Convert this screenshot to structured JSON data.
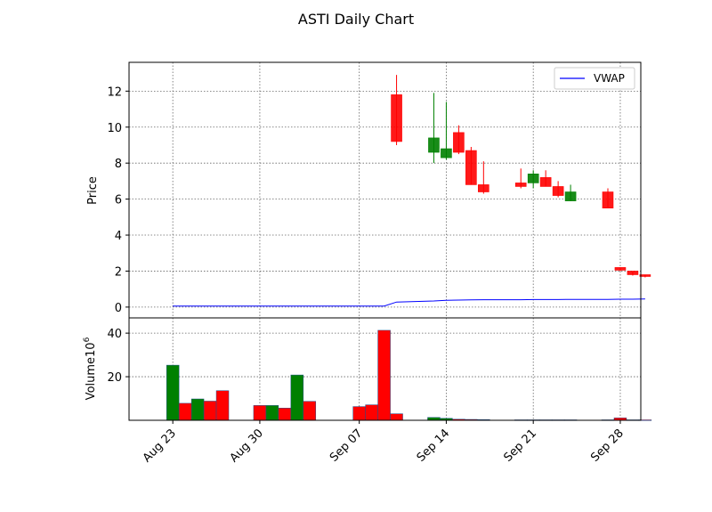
{
  "chart_data": {
    "type": "candlestick",
    "title": "ASTI Daily Chart",
    "price_panel": {
      "ylabel": "Price",
      "ylim": [
        -0.6,
        13.6
      ],
      "yticks": [
        0,
        2,
        4,
        6,
        8,
        10,
        12
      ],
      "grid": true,
      "legend": {
        "placement": "top-right",
        "entries": [
          "VWAP"
        ]
      },
      "vwap_color": "#0000ff"
    },
    "volume_panel": {
      "ylabel": "Volume",
      "ylabel_exponent": "10",
      "ylabel_exponent_power": "6",
      "ylim": [
        0,
        47
      ],
      "yticks": [
        20,
        40
      ],
      "grid": true
    },
    "x_tick_labels": [
      "Aug 23",
      "Aug 30",
      "Sep 07",
      "Sep 14",
      "Sep 21",
      "Sep 28"
    ],
    "x_tick_dates": [
      "2021-08-23",
      "2021-08-30",
      "2021-09-07",
      "2021-09-14",
      "2021-09-21",
      "2021-09-28"
    ],
    "colors": {
      "up": "#008000",
      "down": "#ff0000"
    },
    "days": [
      {
        "date": "2021-08-23",
        "vwap": 0.06,
        "volume": 25.3,
        "dir": "up"
      },
      {
        "date": "2021-08-24",
        "vwap": 0.06,
        "volume": 7.8,
        "dir": "down"
      },
      {
        "date": "2021-08-25",
        "vwap": 0.06,
        "volume": 9.8,
        "dir": "up"
      },
      {
        "date": "2021-08-26",
        "vwap": 0.06,
        "volume": 8.8,
        "dir": "down"
      },
      {
        "date": "2021-08-27",
        "vwap": 0.06,
        "volume": 13.6,
        "dir": "down"
      },
      {
        "date": "2021-08-30",
        "vwap": 0.06,
        "volume": 6.8,
        "dir": "down"
      },
      {
        "date": "2021-08-31",
        "vwap": 0.06,
        "volume": 6.8,
        "dir": "up"
      },
      {
        "date": "2021-09-01",
        "vwap": 0.06,
        "volume": 5.6,
        "dir": "down"
      },
      {
        "date": "2021-09-02",
        "vwap": 0.06,
        "volume": 20.8,
        "dir": "up"
      },
      {
        "date": "2021-09-03",
        "vwap": 0.06,
        "volume": 8.7,
        "dir": "down"
      },
      {
        "date": "2021-09-07",
        "vwap": 0.06,
        "volume": 6.3,
        "dir": "down"
      },
      {
        "date": "2021-09-08",
        "vwap": 0.06,
        "volume": 7.1,
        "dir": "down"
      },
      {
        "date": "2021-09-09",
        "vwap": 0.06,
        "volume": 41.3,
        "dir": "down"
      },
      {
        "date": "2021-09-10",
        "open": 11.8,
        "high": 12.9,
        "low": 9.0,
        "close": 9.2,
        "vwap": 0.28,
        "volume": 3.0,
        "dir": "down"
      },
      {
        "date": "2021-09-13",
        "open": 8.6,
        "high": 11.9,
        "low": 8.0,
        "close": 9.4,
        "vwap": 0.34,
        "volume": 1.3,
        "dir": "up"
      },
      {
        "date": "2021-09-14",
        "open": 8.3,
        "high": 11.4,
        "low": 8.2,
        "close": 8.8,
        "vwap": 0.38,
        "volume": 0.9,
        "dir": "up"
      },
      {
        "date": "2021-09-15",
        "open": 9.7,
        "high": 10.1,
        "low": 8.5,
        "close": 8.6,
        "vwap": 0.39,
        "volume": 0.5,
        "dir": "down"
      },
      {
        "date": "2021-09-16",
        "open": 8.7,
        "high": 8.9,
        "low": 6.8,
        "close": 6.8,
        "vwap": 0.4,
        "volume": 0.4,
        "dir": "down"
      },
      {
        "date": "2021-09-17",
        "open": 6.8,
        "high": 8.1,
        "low": 6.3,
        "close": 6.4,
        "vwap": 0.41,
        "volume": 0.3,
        "dir": "down"
      },
      {
        "date": "2021-09-20",
        "open": 6.9,
        "high": 7.7,
        "low": 6.6,
        "close": 6.7,
        "vwap": 0.41,
        "volume": 0.2,
        "dir": "down"
      },
      {
        "date": "2021-09-21",
        "open": 6.9,
        "high": 7.6,
        "low": 6.6,
        "close": 7.4,
        "vwap": 0.42,
        "volume": 0.2,
        "dir": "up"
      },
      {
        "date": "2021-09-22",
        "open": 7.2,
        "high": 7.6,
        "low": 6.7,
        "close": 6.7,
        "vwap": 0.42,
        "volume": 0.2,
        "dir": "down"
      },
      {
        "date": "2021-09-23",
        "open": 6.7,
        "high": 7.0,
        "low": 6.1,
        "close": 6.2,
        "vwap": 0.42,
        "volume": 0.2,
        "dir": "down"
      },
      {
        "date": "2021-09-24",
        "open": 5.9,
        "high": 6.8,
        "low": 5.9,
        "close": 6.4,
        "vwap": 0.43,
        "volume": 0.2,
        "dir": "up"
      },
      {
        "date": "2021-09-27",
        "open": 6.4,
        "high": 6.6,
        "low": 5.5,
        "close": 5.5,
        "vwap": 0.43,
        "volume": 0.2,
        "dir": "down"
      },
      {
        "date": "2021-09-28",
        "open": 2.2,
        "high": 2.2,
        "low": 2.0,
        "close": 2.05,
        "vwap": 0.44,
        "volume": 1.1,
        "dir": "down"
      },
      {
        "date": "2021-09-29",
        "open": 2.0,
        "high": 2.0,
        "low": 1.75,
        "close": 1.8,
        "vwap": 0.44,
        "volume": 0.2,
        "dir": "down"
      },
      {
        "date": "2021-09-30",
        "open": 1.8,
        "high": 1.8,
        "low": 1.65,
        "close": 1.72,
        "vwap": 0.45,
        "volume": 0.2,
        "dir": "down"
      }
    ]
  }
}
